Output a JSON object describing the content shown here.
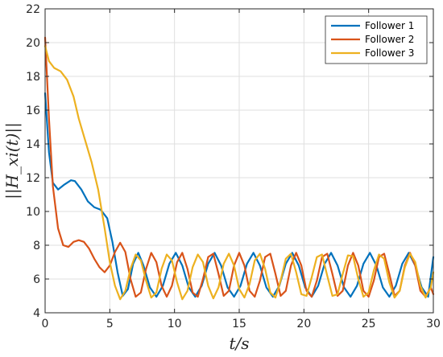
{
  "chart_data": {
    "type": "line",
    "xlabel": "t/s",
    "ylabel": "||H_xi(t)||",
    "xlim": [
      0,
      30
    ],
    "ylim": [
      4,
      22
    ],
    "x_ticks": [
      "0",
      "5",
      "10",
      "15",
      "20",
      "25",
      "30"
    ],
    "y_ticks": [
      "4",
      "6",
      "8",
      "10",
      "12",
      "14",
      "16",
      "18",
      "20",
      "22"
    ],
    "grid": true,
    "legend_position": "top-right",
    "series": [
      {
        "name": "Follower 1",
        "color": "#0072BD",
        "x": [
          0,
          0.3,
          0.6,
          1.0,
          1.5,
          2.0,
          2.3,
          2.8,
          3.3,
          3.8,
          4.3,
          4.8,
          5.2,
          5.6,
          6.0,
          6.4,
          6.8,
          7.2,
          7.6,
          8.1,
          8.6,
          9.1,
          9.6,
          10.1,
          10.6,
          11.1,
          11.6,
          12.1,
          12.6,
          13.1,
          13.6,
          14.1,
          14.6,
          15.1,
          15.6,
          16.1,
          16.6,
          17.1,
          17.6,
          18.1,
          18.6,
          19.1,
          19.6,
          20.1,
          20.6,
          21.1,
          21.6,
          22.1,
          22.6,
          23.1,
          23.6,
          24.1,
          24.6,
          25.1,
          25.6,
          26.1,
          26.6,
          27.1,
          27.6,
          28.1,
          28.6,
          29.1,
          29.6,
          30.0
        ],
        "y": [
          17.0,
          13.5,
          11.7,
          11.3,
          11.6,
          11.85,
          11.8,
          11.3,
          10.6,
          10.25,
          10.1,
          9.6,
          8.2,
          6.4,
          5.0,
          5.4,
          6.9,
          7.55,
          6.8,
          5.5,
          4.95,
          5.6,
          6.9,
          7.55,
          6.8,
          5.5,
          4.95,
          5.6,
          6.9,
          7.55,
          6.8,
          5.5,
          4.95,
          5.6,
          6.9,
          7.55,
          6.8,
          5.5,
          4.95,
          5.6,
          6.9,
          7.55,
          6.8,
          5.5,
          4.95,
          5.6,
          6.9,
          7.55,
          6.8,
          5.5,
          4.95,
          5.6,
          6.9,
          7.55,
          6.8,
          5.5,
          4.95,
          5.6,
          6.9,
          7.55,
          6.8,
          5.5,
          4.95,
          7.3
        ]
      },
      {
        "name": "Follower 2",
        "color": "#D95319",
        "x": [
          0,
          0.3,
          0.6,
          1.0,
          1.4,
          1.8,
          2.2,
          2.6,
          3.0,
          3.4,
          3.8,
          4.2,
          4.6,
          5.0,
          5.4,
          5.8,
          6.2,
          6.6,
          7.0,
          7.4,
          7.8,
          8.2,
          8.6,
          9.0,
          9.4,
          9.8,
          10.2,
          10.6,
          11.0,
          11.4,
          11.8,
          12.2,
          12.6,
          13.0,
          13.4,
          13.8,
          14.2,
          14.6,
          15.0,
          15.4,
          15.8,
          16.2,
          16.6,
          17.0,
          17.4,
          17.8,
          18.2,
          18.6,
          19.0,
          19.4,
          19.8,
          20.2,
          20.6,
          21.0,
          21.4,
          21.8,
          22.2,
          22.6,
          23.0,
          23.4,
          23.8,
          24.2,
          24.6,
          25.0,
          25.4,
          25.8,
          26.2,
          26.6,
          27.0,
          27.4,
          27.8,
          28.2,
          28.6,
          29.0,
          29.4,
          29.8,
          30.0
        ],
        "y": [
          20.3,
          15.5,
          11.5,
          9.0,
          8.0,
          7.9,
          8.2,
          8.3,
          8.2,
          7.8,
          7.2,
          6.7,
          6.4,
          6.8,
          7.6,
          8.15,
          7.6,
          6.0,
          4.95,
          5.2,
          6.6,
          7.55,
          7.0,
          5.6,
          4.95,
          5.6,
          7.0,
          7.55,
          6.6,
          5.2,
          4.95,
          6.0,
          7.3,
          7.5,
          6.3,
          5.0,
          5.3,
          6.8,
          7.55,
          6.8,
          5.3,
          4.95,
          5.9,
          7.3,
          7.5,
          6.3,
          5.0,
          5.3,
          6.8,
          7.55,
          6.8,
          5.3,
          4.95,
          5.9,
          7.3,
          7.5,
          6.3,
          5.0,
          5.3,
          6.8,
          7.55,
          6.8,
          5.3,
          4.95,
          5.9,
          7.3,
          7.5,
          6.3,
          5.0,
          5.3,
          6.8,
          7.55,
          6.8,
          5.3,
          4.95,
          5.5,
          5.1
        ]
      },
      {
        "name": "Follower 3",
        "color": "#EDB120",
        "x": [
          0,
          0.3,
          0.7,
          1.2,
          1.7,
          2.2,
          2.6,
          3.1,
          3.6,
          4.1,
          4.6,
          5.0,
          5.4,
          5.8,
          6.2,
          6.6,
          7.0,
          7.4,
          7.8,
          8.2,
          8.6,
          9.0,
          9.4,
          9.8,
          10.2,
          10.6,
          11.0,
          11.4,
          11.8,
          12.2,
          12.6,
          13.0,
          13.4,
          13.8,
          14.2,
          14.6,
          15.0,
          15.4,
          15.8,
          16.2,
          16.6,
          17.0,
          17.4,
          17.8,
          18.2,
          18.6,
          19.0,
          19.4,
          19.8,
          20.2,
          20.6,
          21.0,
          21.4,
          21.8,
          22.2,
          22.6,
          23.0,
          23.4,
          23.8,
          24.2,
          24.6,
          25.0,
          25.4,
          25.8,
          26.2,
          26.6,
          27.0,
          27.4,
          27.8,
          28.2,
          28.6,
          29.0,
          29.4,
          29.8,
          30.0
        ],
        "y": [
          19.8,
          18.9,
          18.5,
          18.3,
          17.8,
          16.8,
          15.5,
          14.2,
          12.9,
          11.3,
          9.0,
          7.0,
          5.6,
          4.8,
          5.3,
          6.6,
          7.45,
          7.1,
          5.9,
          4.9,
          5.2,
          6.6,
          7.45,
          7.1,
          5.8,
          4.8,
          5.3,
          6.7,
          7.45,
          7.0,
          5.6,
          4.85,
          5.5,
          6.9,
          7.5,
          6.8,
          5.4,
          4.9,
          5.7,
          7.1,
          7.5,
          6.6,
          5.2,
          4.9,
          5.9,
          7.2,
          7.5,
          6.4,
          5.1,
          5.0,
          6.1,
          7.3,
          7.45,
          6.2,
          5.0,
          5.1,
          6.3,
          7.4,
          7.35,
          6.0,
          4.95,
          5.2,
          6.5,
          7.45,
          7.2,
          5.8,
          4.9,
          5.3,
          6.7,
          7.5,
          7.0,
          5.6,
          4.9,
          5.5,
          6.4
        ]
      }
    ]
  }
}
